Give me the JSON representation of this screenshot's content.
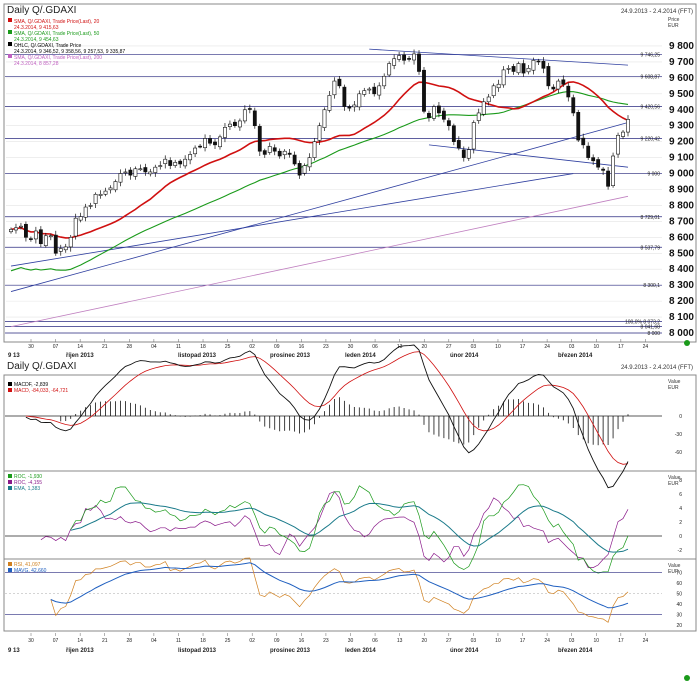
{
  "top_panel": {
    "title": "Daily Q/.GDAXI",
    "range": "24.9.2013 - 2.4.2014 (FFT)",
    "unit_label": "Price",
    "currency": "EUR",
    "legend": [
      {
        "text": "SMA, Q/.GDAXI, Trade Price(Last), 20",
        "color": "#d01010",
        "show_value": true,
        "value": "24.3.2014, 9 415,63"
      },
      {
        "text": "SMA, Q/.GDAXI, Trade Price(Last), 50",
        "color": "#1a9a1a",
        "show_value": true,
        "value": "24.3.2014, 9 454,63"
      },
      {
        "text": "OHLC, Q/.GDAXI, Trade Price",
        "color": "#000000",
        "show_value": true,
        "value": "24.3.2014, 9 346,52, 9 358,56, 9 257,53, 9 335,87"
      },
      {
        "text": "SMA, Q/.GDAXI, Trade Price(Last), 200",
        "color": "#c060c0",
        "show_value": true,
        "value": "24.3.2014, 8 857,28"
      }
    ],
    "price_ticks": [
      "9 800",
      "9 700",
      "9 600",
      "9 500",
      "9 400",
      "9 300",
      "9 200",
      "9 100",
      "9 000",
      "8 900",
      "8 800",
      "8 700",
      "8 600",
      "8 500",
      "8 400",
      "8 300",
      "8 200",
      "8 100",
      "8 000"
    ],
    "levels": [
      {
        "label": "9 746,25"
      },
      {
        "label": "9 608,87"
      },
      {
        "label": "9 420,56"
      },
      {
        "label": "9 220,42"
      },
      {
        "label": "9 000"
      },
      {
        "label": "8 729,01"
      },
      {
        "label": "8 537,79"
      },
      {
        "label": "8 300,1"
      },
      {
        "label": "100,0% 8 073,2"
      },
      {
        "label": "8 041,68"
      },
      {
        "label": "8 000"
      }
    ]
  },
  "macd_panel": {
    "title": "Daily Q/.GDAXI",
    "range": "24.9.2013 - 2.4.2014 (FFT)",
    "unit_label": "Value",
    "currency": "EUR",
    "legend": [
      {
        "text": "MACDF, -2,839",
        "color": "#000000"
      },
      {
        "text": "MACD, -84,033, -64,721",
        "color": "#d01010"
      }
    ],
    "ticks": [
      "0",
      "-30",
      "-60"
    ]
  },
  "roc_panel": {
    "unit_label": "Value",
    "currency": "EUR",
    "legend": [
      {
        "text": "ROC, -1,930",
        "color": "#1a9a1a"
      },
      {
        "text": "ROC, -4,155",
        "color": "#8a1a8a"
      },
      {
        "text": "EMA, 1,383",
        "color": "#1a7a8a"
      }
    ],
    "ticks": [
      "8",
      "6",
      "4",
      "2",
      "0",
      "-2"
    ]
  },
  "rsi_panel": {
    "unit_label": "Value",
    "currency": "EUR",
    "legend": [
      {
        "text": "RSI, 41,097",
        "color": "#d08020"
      },
      {
        "text": "MAVG, 42,660",
        "color": "#2060c0"
      }
    ],
    "ticks": [
      "70",
      "60",
      "50",
      "40",
      "30",
      "20"
    ]
  },
  "x_axis": {
    "day_ticks": [
      "30",
      "07",
      "14",
      "21",
      "28",
      "04",
      "11",
      "18",
      "25",
      "02",
      "09",
      "16",
      "23",
      "30",
      "06",
      "13",
      "20",
      "27",
      "03",
      "10",
      "17",
      "24",
      "03",
      "10",
      "17",
      "24",
      "31"
    ],
    "month_labels": [
      "9 13",
      "říjen 2013",
      "listopad 2013",
      "prosinec 2013",
      "leden 2014",
      "únor 2014",
      "březen 2014"
    ]
  },
  "chart_data": [
    {
      "type": "candlestick",
      "title": "Daily Q/.GDAXI",
      "subtitle": "24.9.2013 - 2.4.2014 (FFT)",
      "ylabel": "Price EUR",
      "ylim": [
        7950,
        9850
      ],
      "x": [
        "2013-09-24",
        "2013-09-25",
        "2013-09-26",
        "2013-09-27",
        "2013-09-30",
        "2013-10-01",
        "2013-10-02",
        "2013-10-03",
        "2013-10-04",
        "2013-10-07",
        "2013-10-08",
        "2013-10-09",
        "2013-10-10",
        "2013-10-11",
        "2013-10-14",
        "2013-10-15",
        "2013-10-16",
        "2013-10-17",
        "2013-10-18",
        "2013-10-21",
        "2013-10-22",
        "2013-10-23",
        "2013-10-24",
        "2013-10-25",
        "2013-10-28",
        "2013-10-29",
        "2013-10-30",
        "2013-10-31",
        "2013-11-01",
        "2013-11-04",
        "2013-11-05",
        "2013-11-06",
        "2013-11-07",
        "2013-11-08",
        "2013-11-11",
        "2013-11-12",
        "2013-11-13",
        "2013-11-14",
        "2013-11-15",
        "2013-11-18",
        "2013-11-19",
        "2013-11-20",
        "2013-11-21",
        "2013-11-22",
        "2013-11-25",
        "2013-11-26",
        "2013-11-27",
        "2013-11-28",
        "2013-11-29",
        "2013-12-02",
        "2013-12-03",
        "2013-12-04",
        "2013-12-05",
        "2013-12-06",
        "2013-12-09",
        "2013-12-10",
        "2013-12-11",
        "2013-12-12",
        "2013-12-13",
        "2013-12-16",
        "2013-12-17",
        "2013-12-18",
        "2013-12-19",
        "2013-12-20",
        "2013-12-23",
        "2013-12-27",
        "2013-12-30",
        "2014-01-02",
        "2014-01-03",
        "2014-01-06",
        "2014-01-07",
        "2014-01-08",
        "2014-01-09",
        "2014-01-10",
        "2014-01-13",
        "2014-01-14",
        "2014-01-15",
        "2014-01-16",
        "2014-01-17",
        "2014-01-20",
        "2014-01-21",
        "2014-01-22",
        "2014-01-23",
        "2014-01-24",
        "2014-01-27",
        "2014-01-28",
        "2014-01-29",
        "2014-01-30",
        "2014-01-31",
        "2014-02-03",
        "2014-02-04",
        "2014-02-05",
        "2014-02-06",
        "2014-02-07",
        "2014-02-10",
        "2014-02-11",
        "2014-02-12",
        "2014-02-13",
        "2014-02-14",
        "2014-02-17",
        "2014-02-18",
        "2014-02-19",
        "2014-02-20",
        "2014-02-21",
        "2014-02-24",
        "2014-02-25",
        "2014-02-26",
        "2014-02-27",
        "2014-02-28",
        "2014-03-03",
        "2014-03-04",
        "2014-03-05",
        "2014-03-06",
        "2014-03-07",
        "2014-03-10",
        "2014-03-11",
        "2014-03-12",
        "2014-03-13",
        "2014-03-14",
        "2014-03-17",
        "2014-03-18",
        "2014-03-19",
        "2014-03-20",
        "2014-03-21",
        "2014-03-24"
      ],
      "close": [
        8650,
        8660,
        8670,
        8600,
        8590,
        8640,
        8560,
        8610,
        8610,
        8500,
        8530,
        8540,
        8600,
        8720,
        8730,
        8790,
        8800,
        8870,
        8870,
        8890,
        8910,
        8950,
        9000,
        9010,
        8990,
        9030,
        9030,
        9010,
        9010,
        9040,
        9050,
        9090,
        9050,
        9070,
        9060,
        9090,
        9120,
        9160,
        9170,
        9220,
        9190,
        9180,
        9230,
        9290,
        9310,
        9300,
        9330,
        9400,
        9405,
        9300,
        9140,
        9120,
        9170,
        9140,
        9110,
        9140,
        9120,
        9060,
        8990,
        9050,
        9100,
        9200,
        9300,
        9400,
        9490,
        9580,
        9550,
        9420,
        9410,
        9430,
        9500,
        9520,
        9530,
        9500,
        9550,
        9610,
        9690,
        9720,
        9740,
        9710,
        9720,
        9750,
        9640,
        9390,
        9350,
        9420,
        9380,
        9340,
        9300,
        9200,
        9160,
        9100,
        9150,
        9320,
        9380,
        9450,
        9480,
        9550,
        9560,
        9650,
        9660,
        9640,
        9690,
        9630,
        9660,
        9710,
        9700,
        9660,
        9550,
        9530,
        9580,
        9560,
        9480,
        9380,
        9210,
        9180,
        9100,
        9080,
        9040,
        9020,
        8920,
        9110,
        9240,
        9260,
        9340
      ],
      "sma20_end": 9415.63,
      "sma50_end": 9454.63,
      "sma200_end": 8857.28,
      "ohlc_last": {
        "date": "24.3.2014",
        "open": 9346.52,
        "high": 9358.56,
        "low": 9257.53,
        "close": 9335.87
      },
      "levels": [
        9746.25,
        9608.87,
        9420.56,
        9220.42,
        9000,
        8729.01,
        8537.79,
        8300.1,
        8073.2,
        8041.68,
        8000
      ]
    },
    {
      "type": "line",
      "series": [
        {
          "name": "MACDF"
        },
        {
          "name": "MACD"
        }
      ],
      "last": {
        "MACDF": -2.839,
        "MACD": -84.033,
        "signal": -64.721
      },
      "ylim": [
        -90,
        60
      ]
    },
    {
      "type": "line",
      "series": [
        {
          "name": "ROC"
        },
        {
          "name": "ROC"
        },
        {
          "name": "EMA"
        }
      ],
      "last": {
        "ROC_1": -1.93,
        "ROC_2": -4.155,
        "EMA": 1.383
      },
      "ylim": [
        -3,
        9
      ]
    },
    {
      "type": "line",
      "series": [
        {
          "name": "RSI"
        },
        {
          "name": "MAVG"
        }
      ],
      "last": {
        "RSI": 41.097,
        "MAVG": 42.66
      },
      "ylim": [
        15,
        80
      ]
    }
  ]
}
